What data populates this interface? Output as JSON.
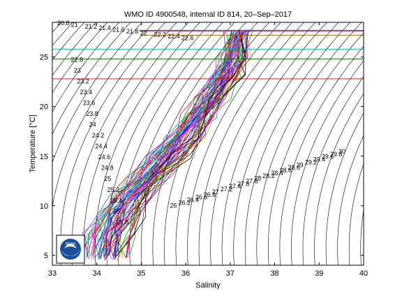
{
  "chart_data": {
    "type": "line",
    "title": "WMO ID 4900548, internal ID 814, 20–Sep–2017",
    "xlabel": "Salinity",
    "ylabel": "Temperature [°C]",
    "xlim": [
      33,
      40
    ],
    "ylim": [
      4,
      28.5
    ],
    "x_ticks": [
      "33",
      "34",
      "35",
      "36",
      "37",
      "38",
      "39",
      "40"
    ],
    "y_ticks": [
      "5",
      "10",
      "15",
      "20",
      "25"
    ],
    "isopycnal_labels": [
      "20.8",
      "21",
      "21.2",
      "21.4",
      "21.6",
      "21.8",
      "22",
      "22.2",
      "22.4",
      "22.6",
      "22.8",
      "23",
      "23.2",
      "23.4",
      "23.6",
      "23.8",
      "24",
      "24.2",
      "24.4",
      "24.6",
      "24.8",
      "25",
      "25.2",
      "25.4",
      "25.6",
      "25.8",
      "26",
      "26.2",
      "26.4",
      "26.6",
      "26.8",
      "27",
      "27.2",
      "27.4",
      "27.6",
      "27.8",
      "28",
      "28.2",
      "28.4",
      "28.6",
      "28.8",
      "29",
      "29.2",
      "29.4",
      "29.6",
      "29.8",
      "30"
    ],
    "grid": false,
    "logo": "NOAA",
    "representative_profile": {
      "salinity": [
        34.2,
        34.3,
        34.5,
        34.8,
        35.2,
        35.6,
        36.0,
        36.3,
        36.6,
        36.9,
        37.1,
        37.2
      ],
      "temperature": [
        4.8,
        7,
        9,
        11,
        13,
        15,
        17,
        19,
        21,
        23,
        25,
        27.5
      ]
    },
    "profile_count": 60,
    "horizontal_segments_temperature": [
      27.7,
      27.6,
      27.2,
      25.8,
      24.8,
      22.8
    ]
  }
}
